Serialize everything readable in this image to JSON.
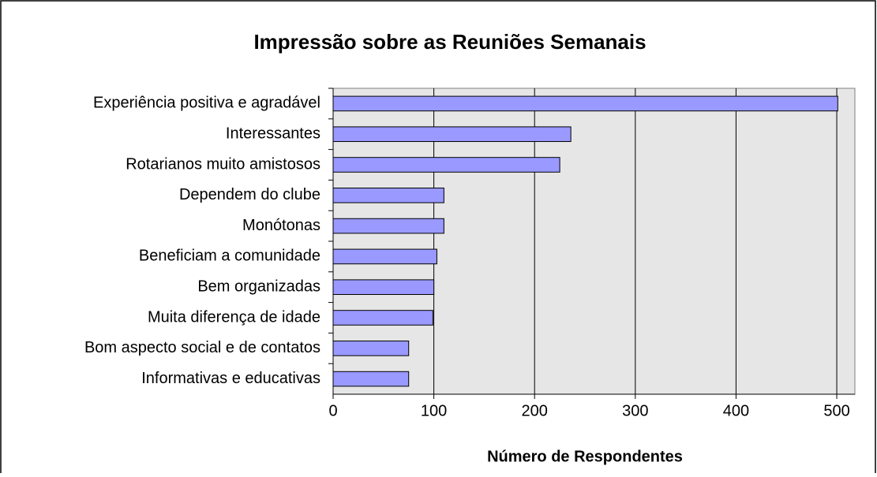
{
  "chart_data": {
    "type": "bar",
    "orientation": "horizontal",
    "title": "Impressão sobre as Reuniões Semanais",
    "x_label": "Número de Respondentes",
    "categories": [
      "Experiência positiva e agradável",
      "Interessantes",
      "Rotarianos muito amistosos",
      "Dependem do clube",
      "Monótonas",
      "Beneficiam a comunidade",
      "Bem organizadas",
      "Muita diferença de idade",
      "Bom aspecto social e de contatos",
      "Informativas e educativas"
    ],
    "values": [
      501,
      236,
      225,
      110,
      110,
      103,
      100,
      99,
      75,
      75
    ],
    "color": "#9999ff",
    "xlim": [
      0,
      518
    ],
    "xticks": [
      0,
      100,
      200,
      300,
      400,
      500
    ],
    "grid": true
  }
}
